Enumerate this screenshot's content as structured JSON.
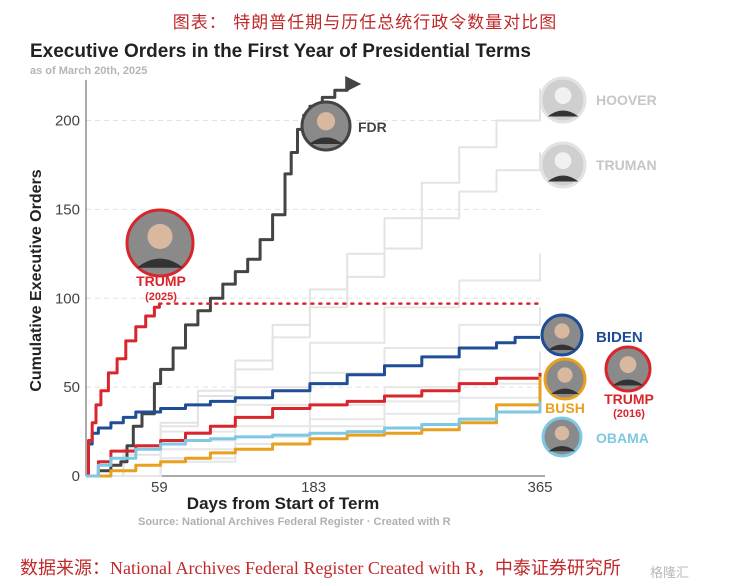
{
  "caption": "图表： 特朗普任期与历任总统行政令数量对比图",
  "footer": "数据来源：National Archives Federal Register Created with R，中泰证券研究所",
  "watermark": "格隆汇",
  "chart_data": {
    "type": "line",
    "title": "Executive Orders in the First Year of Presidential Terms",
    "subtitle": "as of March 20th, 2025",
    "xlabel": "Days from Start of Term",
    "ylabel": "Cumulative Executive Orders",
    "xlim": [
      0,
      365
    ],
    "ylim": [
      0,
      220
    ],
    "xticks": [
      59,
      183,
      365
    ],
    "yticks": [
      0,
      50,
      100,
      150,
      200
    ],
    "grid": "horizontal dashed",
    "source": "Source: National Archives Federal Register  ·  Created with R",
    "reference_line": {
      "value": 97,
      "color": "#d8262c",
      "style": "dotted"
    },
    "series": [
      {
        "name": "FDR",
        "label": "FDR",
        "color": "#444444",
        "highlight": true,
        "arrow": true,
        "x": [
          0,
          10,
          20,
          28,
          33,
          38,
          45,
          55,
          60,
          70,
          80,
          90,
          100,
          110,
          120,
          130,
          140,
          150,
          160,
          165,
          170,
          175,
          180,
          190,
          200,
          210
        ],
        "y": [
          0,
          3,
          6,
          8,
          17,
          28,
          35,
          52,
          60,
          72,
          85,
          93,
          100,
          108,
          115,
          122,
          133,
          147,
          170,
          182,
          195,
          203,
          208,
          213,
          217,
          220
        ]
      },
      {
        "name": "HOOVER",
        "label": "HOOVER",
        "color": "#e3e3e3",
        "highlight": false,
        "x": [
          0,
          30,
          60,
          90,
          120,
          150,
          180,
          210,
          240,
          270,
          300,
          330,
          365
        ],
        "y": [
          0,
          15,
          30,
          48,
          65,
          85,
          105,
          125,
          145,
          165,
          185,
          200,
          218
        ]
      },
      {
        "name": "TRUMAN",
        "label": "TRUMAN",
        "color": "#e3e3e3",
        "highlight": false,
        "x": [
          0,
          30,
          60,
          90,
          120,
          150,
          180,
          210,
          240,
          270,
          300,
          330,
          365
        ],
        "y": [
          0,
          12,
          28,
          45,
          60,
          78,
          95,
          112,
          128,
          145,
          160,
          172,
          182
        ]
      },
      {
        "name": "Other A",
        "color": "#e6e6e6",
        "highlight": false,
        "x": [
          0,
          60,
          120,
          180,
          240,
          300,
          365
        ],
        "y": [
          0,
          25,
          50,
          75,
          95,
          110,
          125
        ]
      },
      {
        "name": "Other B",
        "color": "#e6e6e6",
        "highlight": false,
        "x": [
          0,
          60,
          120,
          180,
          240,
          300,
          365
        ],
        "y": [
          0,
          20,
          40,
          58,
          72,
          85,
          95
        ]
      },
      {
        "name": "Other C",
        "color": "#e6e6e6",
        "highlight": false,
        "x": [
          0,
          60,
          120,
          180,
          240,
          300,
          365
        ],
        "y": [
          0,
          15,
          28,
          40,
          50,
          60,
          70
        ]
      },
      {
        "name": "Other D",
        "color": "#e6e6e6",
        "highlight": false,
        "x": [
          0,
          60,
          120,
          180,
          240,
          300,
          365
        ],
        "y": [
          0,
          10,
          22,
          32,
          42,
          52,
          62
        ]
      },
      {
        "name": "Other E",
        "color": "#e6e6e6",
        "highlight": false,
        "x": [
          0,
          60,
          120,
          180,
          240,
          300,
          365
        ],
        "y": [
          0,
          8,
          18,
          28,
          35,
          44,
          52
        ]
      },
      {
        "name": "BIDEN",
        "label": "BIDEN",
        "color": "#1f4e96",
        "highlight": true,
        "x": [
          0,
          2,
          5,
          10,
          20,
          30,
          40,
          60,
          80,
          100,
          120,
          150,
          180,
          210,
          240,
          270,
          300,
          330,
          345,
          365
        ],
        "y": [
          0,
          18,
          24,
          27,
          30,
          33,
          36,
          38,
          40,
          42,
          44,
          48,
          52,
          57,
          62,
          67,
          72,
          75,
          78,
          78
        ]
      },
      {
        "name": "TRUMP (2025)",
        "label": "TRUMP",
        "sublabel": "(2025)",
        "color": "#d8262c",
        "highlight": true,
        "x": [
          0,
          2,
          5,
          8,
          12,
          18,
          25,
          32,
          40,
          48,
          55,
          59
        ],
        "y": [
          0,
          20,
          30,
          40,
          48,
          58,
          66,
          76,
          84,
          90,
          95,
          97
        ]
      },
      {
        "name": "TRUMP (2016)",
        "label": "TRUMP",
        "sublabel": "(2016)",
        "color": "#d8262c",
        "highlight": true,
        "x": [
          0,
          10,
          20,
          40,
          60,
          80,
          100,
          120,
          150,
          180,
          210,
          240,
          270,
          300,
          330,
          365
        ],
        "y": [
          0,
          8,
          14,
          17,
          20,
          24,
          28,
          33,
          38,
          40,
          42,
          45,
          48,
          52,
          55,
          58
        ]
      },
      {
        "name": "BUSH",
        "label": "BUSH",
        "color": "#e8a020",
        "highlight": true,
        "x": [
          0,
          20,
          40,
          60,
          80,
          100,
          120,
          150,
          180,
          210,
          240,
          270,
          300,
          330,
          365
        ],
        "y": [
          0,
          3,
          6,
          8,
          10,
          13,
          15,
          18,
          21,
          23,
          24,
          26,
          30,
          40,
          56
        ]
      },
      {
        "name": "OBAMA",
        "label": "OBAMA",
        "color": "#7ec8e3",
        "highlight": true,
        "x": [
          0,
          10,
          20,
          40,
          60,
          80,
          100,
          120,
          150,
          180,
          210,
          240,
          270,
          300,
          330,
          365
        ],
        "y": [
          0,
          6,
          10,
          15,
          18,
          20,
          21,
          22,
          23,
          24,
          25,
          27,
          29,
          32,
          36,
          42
        ]
      }
    ]
  }
}
